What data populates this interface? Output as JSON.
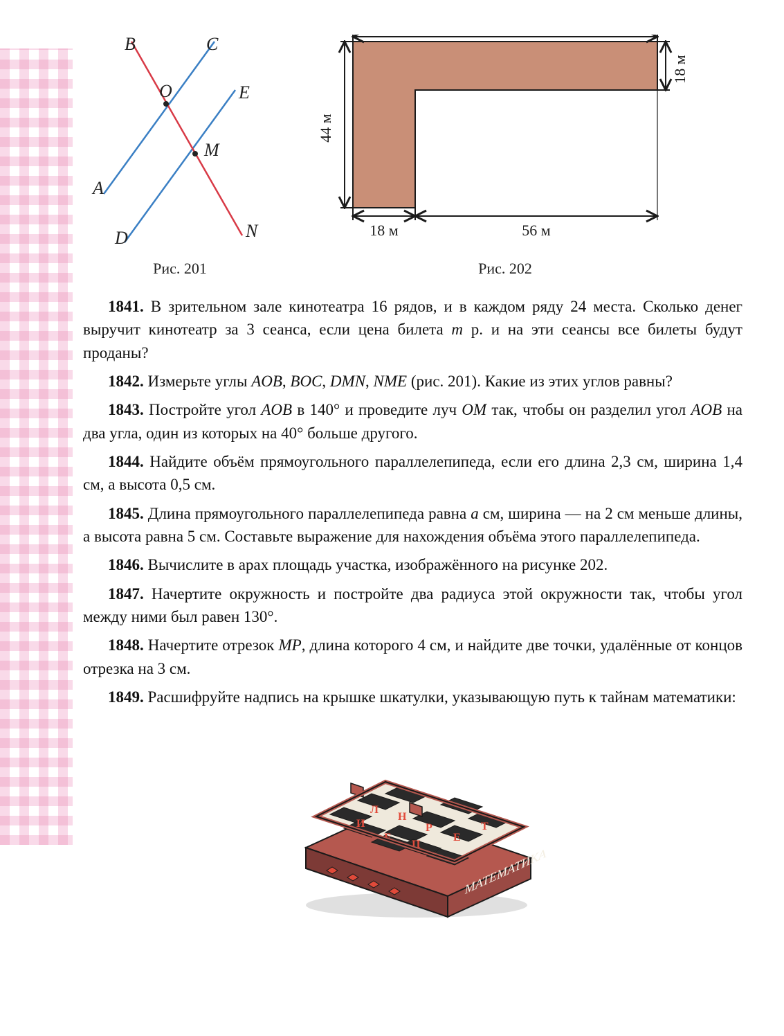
{
  "fig201": {
    "caption": "Рис. 201",
    "labels": {
      "A": "A",
      "B": "B",
      "C": "C",
      "D": "D",
      "E": "E",
      "M": "M",
      "N": "N",
      "O": "O"
    },
    "line_color_red": "#d83a46",
    "line_color_blue": "#3a7fc4",
    "label_font": "italic 24px Times",
    "label_color": "#222222"
  },
  "fig202": {
    "caption": "Рис. 202",
    "dim_top_right": "18 м",
    "dim_left": "44 м",
    "dim_bottom_left": "18 м",
    "dim_bottom_right": "56 м",
    "fill_color": "#c98f77",
    "outline": "#1b1b1b",
    "label_color": "#1b1b1b",
    "label_fontsize": 22
  },
  "problems": {
    "p1841": {
      "num": "1841.",
      "text": " В зрительном зале кинотеатра 16 рядов, и в каждом ряду 24 места. Сколько денег выручит кинотеатр за 3 сеанса, если цена билета <i>m</i> р. и на эти сеансы все билеты будут проданы?"
    },
    "p1842": {
      "num": "1842.",
      "text": " Измерьте углы <i>AOB</i>, <i>BOC</i>, <i>DMN</i>, <i>NME</i> (рис. 201). Какие из этих углов равны?"
    },
    "p1843": {
      "num": "1843.",
      "text": " Постройте угол <i>AOB</i> в 140° и проведите луч <i>OM</i> так, чтобы он разделил угол <i>AOB</i> на два угла, один из которых на 40° больше другого."
    },
    "p1844": {
      "num": "1844.",
      "text": " Найдите объём прямоугольного параллелепипеда, если его длина 2,3 см, ширина 1,4 см, а высота 0,5 см."
    },
    "p1845": {
      "num": "1845.",
      "text": " Длина прямоугольного параллелепипеда равна <i>a</i> см, ширина — на 2 см меньше длины, а высота равна 5 см. Составьте выражение для нахождения объёма этого параллелепипеда."
    },
    "p1846": {
      "num": "1846.",
      "text": " Вычислите в арах площадь участка, изображённого на рисунке 202."
    },
    "p1847": {
      "num": "1847.",
      "text": " Начертите окружность и постройте два радиуса этой окружности так, чтобы угол между ними был равен 130°."
    },
    "p1848": {
      "num": "1848.",
      "text": " Начертите отрезок <i>MP</i>, длина которого 4 см, и найдите две точки, удалённые от концов отрезка на 3 см."
    },
    "p1849": {
      "num": "1849.",
      "text": " Расшифруйте надпись на крышке шкатулки, указывающую путь к тайнам математики:"
    }
  },
  "box": {
    "side_text": "МАТЕМАТИКА",
    "board_fill_dark": "#2a2a2a",
    "board_fill_light": "#efe9dc",
    "wood_color": "#b5584f",
    "wood_shadow": "#7d3a36",
    "outline": "#1a1a1a",
    "letter_red": "#e14a3a",
    "letter_white": "#f4efe4"
  },
  "colors": {
    "margin_tile": "#f4b6d4",
    "text": "#111111"
  }
}
